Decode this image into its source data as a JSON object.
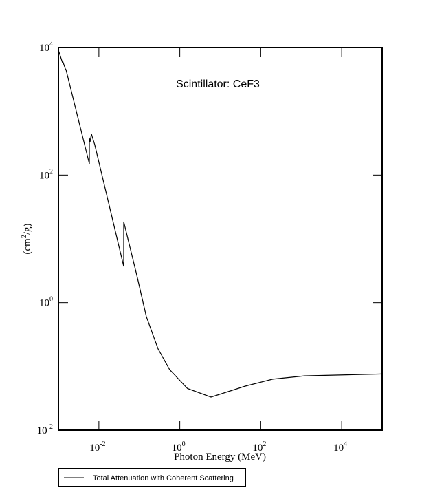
{
  "chart_data": {
    "type": "line",
    "title": "Scintillator: CeF3",
    "xlabel": "Photon Energy (MeV)",
    "ylabel": "(cm²/g)",
    "xscale": "log",
    "yscale": "log",
    "xlim": [
      0.001,
      100000
    ],
    "ylim": [
      0.01,
      10000
    ],
    "x_ticks": [
      {
        "base": "10",
        "exp": "-2",
        "value": 0.01
      },
      {
        "base": "10",
        "exp": "0",
        "value": 1
      },
      {
        "base": "10",
        "exp": "2",
        "value": 100
      },
      {
        "base": "10",
        "exp": "4",
        "value": 10000
      }
    ],
    "y_ticks": [
      {
        "base": "10",
        "exp": "4",
        "value": 10000
      },
      {
        "base": "10",
        "exp": "2",
        "value": 100
      },
      {
        "base": "10",
        "exp": "0",
        "value": 1
      },
      {
        "base": "10",
        "exp": "-2",
        "value": 0.01
      }
    ],
    "ylabel_parts": {
      "pre": "(cm",
      "sup": "2",
      "post": "/g)"
    },
    "grid": false,
    "legend": {
      "placement": "bottom-left",
      "entries": [
        "Total Attenuation with Coherent Scattering"
      ]
    },
    "series": [
      {
        "name": "Total Attenuation with Coherent Scattering",
        "color": "#000000",
        "x": [
          0.001,
          0.00104,
          0.00126,
          0.0013,
          0.00148,
          0.00154,
          0.00581,
          0.00581,
          0.00604,
          0.00653,
          0.0068,
          0.0079,
          0.041,
          0.041,
          0.0863,
          0.149,
          0.29,
          0.56,
          1.55,
          5.9,
          41.5,
          198,
          1200,
          100000
        ],
        "y": [
          9000,
          8400,
          5800,
          5900,
          4650,
          4500,
          150,
          386,
          330,
          445,
          405,
          300,
          3.7,
          18.6,
          2.7,
          0.605,
          0.188,
          0.089,
          0.045,
          0.033,
          0.049,
          0.063,
          0.071,
          0.076
        ]
      }
    ]
  }
}
